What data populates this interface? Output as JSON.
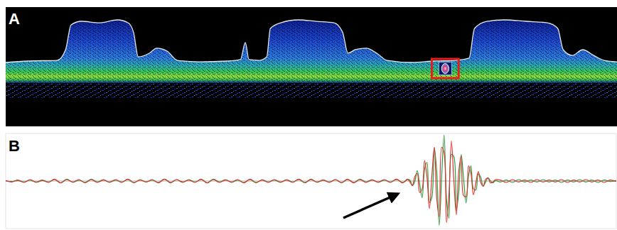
{
  "chart_data": [
    {
      "type": "spectrogram",
      "title": "A",
      "tick_labels": false,
      "xlim": [
        0,
        100
      ],
      "ylim": [
        -60,
        80
      ],
      "x": [
        0,
        3.7,
        8.4,
        9.8,
        10.7,
        12.4,
        15.3,
        18.3,
        20,
        20.9,
        21.7,
        23.5,
        24.7,
        26.4,
        28.1,
        31.6,
        36.3,
        38.4,
        39.2,
        39.8,
        41.5,
        42.7,
        43.3,
        45,
        47.9,
        50.8,
        53.7,
        55.1,
        56,
        57.2,
        59,
        60.7,
        62.4,
        66.5,
        70,
        73.5,
        75.8,
        76.7,
        78.7,
        81.6,
        85.1,
        88.6,
        90.3,
        91.2,
        92.7,
        94.4,
        96.2,
        97.9,
        100
      ],
      "envelope": [
        15.9,
        17.6,
        18.4,
        31.1,
        60.6,
        64.8,
        63.1,
        66.5,
        63.1,
        52.1,
        22.6,
        26.9,
        32.8,
        29.4,
        18.4,
        16.7,
        17.6,
        19.3,
        39.5,
        19.3,
        18.4,
        22.6,
        56.4,
        63.1,
        66.5,
        64.8,
        63.1,
        52.1,
        26.9,
        31.1,
        32.8,
        26.9,
        18.4,
        15.9,
        17.6,
        18.4,
        21,
        56.4,
        64.8,
        66.5,
        64.8,
        63.1,
        56.4,
        31.1,
        24.3,
        31.1,
        24.3,
        18.4,
        16.7
      ],
      "highlight_x": [
        69.7,
        74.1
      ],
      "highlight_y": [
        -2.7,
        20.1
      ],
      "color": "#e81c1c"
    },
    {
      "type": "line",
      "title": "B",
      "tick_labels": false,
      "xlim": [
        0,
        100
      ],
      "ylim": [
        -100,
        100
      ],
      "x": [
        0,
        1,
        2,
        3,
        4,
        5,
        6,
        7,
        8,
        9,
        10,
        11,
        12,
        13,
        14,
        15,
        16,
        17,
        18,
        19,
        20,
        21,
        22,
        23,
        24,
        25,
        26,
        27,
        28,
        29,
        30,
        31,
        32,
        33,
        34,
        35,
        36,
        37,
        38,
        39,
        40,
        41,
        42,
        43,
        44,
        45,
        46,
        47,
        48,
        49,
        50,
        51,
        52,
        53,
        54,
        55,
        56,
        57,
        58,
        59,
        60,
        61,
        62,
        63,
        64,
        65,
        65.4,
        65.8,
        66.2,
        66.6,
        67,
        67.4,
        67.8,
        68.2,
        68.6,
        69,
        69.4,
        69.8,
        70.2,
        70.6,
        71,
        71.4,
        71.8,
        72.2,
        72.6,
        73,
        73.4,
        73.8,
        74.2,
        74.6,
        75,
        75.4,
        75.8,
        76.2,
        76.6,
        77,
        77.4,
        77.8,
        78.2,
        78.6,
        79,
        79.4,
        79.8,
        80.2,
        81,
        82,
        83,
        84,
        85,
        86,
        87,
        88,
        89,
        90,
        91,
        92,
        93,
        94,
        95,
        96,
        97,
        98,
        99,
        100
      ],
      "series": [
        {
          "color": "#2e9a3c",
          "values": [
            0,
            -1,
            1,
            -2,
            2,
            -3,
            1,
            -2,
            3,
            -4,
            4,
            -3,
            2,
            -3,
            4,
            -2,
            3,
            -3,
            2,
            -2,
            3,
            -4,
            3,
            -2,
            2,
            -3,
            4,
            -4,
            3,
            -3,
            3,
            -2,
            3,
            -4,
            4,
            -2,
            3,
            -3,
            2,
            -3,
            3,
            -4,
            3,
            -2,
            2,
            -3,
            3,
            -2,
            3,
            -4,
            4,
            -3,
            2,
            -2,
            3,
            -4,
            3,
            -3,
            4,
            -2,
            3,
            -3,
            2,
            -2,
            3,
            -3,
            -1,
            3,
            2,
            -10,
            -1,
            22,
            -7,
            -35,
            24,
            39,
            -45,
            -34,
            70,
            19,
            -93,
            9,
            97,
            -38,
            -78,
            56,
            51,
            -62,
            -24,
            56,
            4,
            -46,
            10,
            32,
            -16,
            -19,
            15,
            8,
            -11,
            -2,
            7,
            0,
            -4,
            1,
            -2,
            2,
            -3,
            3,
            -2,
            2,
            -2,
            3,
            -2,
            2,
            -3,
            2,
            -2,
            3,
            -2,
            2,
            -3,
            2,
            -1,
            1
          ]
        },
        {
          "color": "#e0302c",
          "values": [
            1,
            -2,
            2,
            -3,
            3,
            -2,
            2,
            -3,
            4,
            -4,
            3,
            -2,
            3,
            -4,
            3,
            -3,
            2,
            -2,
            3,
            -3,
            4,
            -3,
            2,
            -2,
            3,
            -4,
            4,
            -3,
            3,
            -2,
            2,
            -3,
            4,
            -4,
            3,
            -3,
            2,
            -2,
            3,
            -4,
            4,
            -3,
            2,
            -3,
            3,
            -2,
            2,
            -3,
            4,
            -3,
            3,
            -2,
            2,
            -3,
            3,
            -3,
            4,
            -4,
            3,
            -3,
            2,
            -2,
            3,
            -3,
            4,
            -4,
            0,
            4,
            -2,
            -9,
            9,
            16,
            -24,
            -17,
            43,
            8,
            -58,
            11,
            71,
            -38,
            -75,
            71,
            59,
            -87,
            -29,
            84,
            0,
            -71,
            20,
            52,
            -31,
            -33,
            32,
            16,
            -29,
            -4,
            20,
            -3,
            -11,
            4,
            6,
            -4,
            -2,
            3,
            2,
            -3,
            3,
            -2,
            2,
            -3,
            3,
            -2,
            2,
            -2,
            3,
            -3,
            2,
            -2,
            3,
            -2,
            2,
            -3,
            2,
            -1
          ]
        }
      ]
    }
  ]
}
